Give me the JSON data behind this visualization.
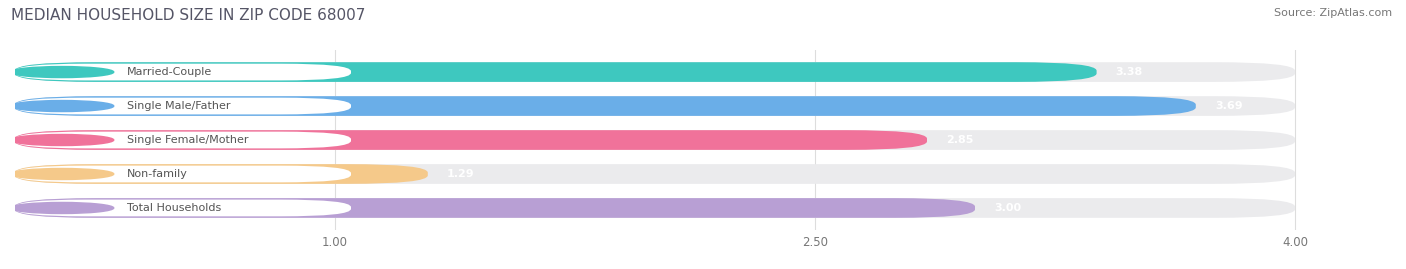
{
  "title": "MEDIAN HOUSEHOLD SIZE IN ZIP CODE 68007",
  "source": "Source: ZipAtlas.com",
  "categories": [
    "Married-Couple",
    "Single Male/Father",
    "Single Female/Mother",
    "Non-family",
    "Total Households"
  ],
  "values": [
    3.38,
    3.69,
    2.85,
    1.29,
    3.0
  ],
  "bar_colors": [
    "#3ec8bf",
    "#6aaee8",
    "#f0729a",
    "#f5c98a",
    "#b89fd4"
  ],
  "label_dot_colors": [
    "#3ec8bf",
    "#6aaee8",
    "#f0729a",
    "#f5c98a",
    "#b89fd4"
  ],
  "background_color": "#ffffff",
  "bar_bg_color": "#ebebed",
  "xlim_data": [
    0,
    4.3
  ],
  "xlim_display": [
    0,
    4.0
  ],
  "xticks": [
    1.0,
    2.5,
    4.0
  ],
  "title_fontsize": 11,
  "source_fontsize": 8,
  "label_fontsize": 8,
  "value_fontsize": 8
}
